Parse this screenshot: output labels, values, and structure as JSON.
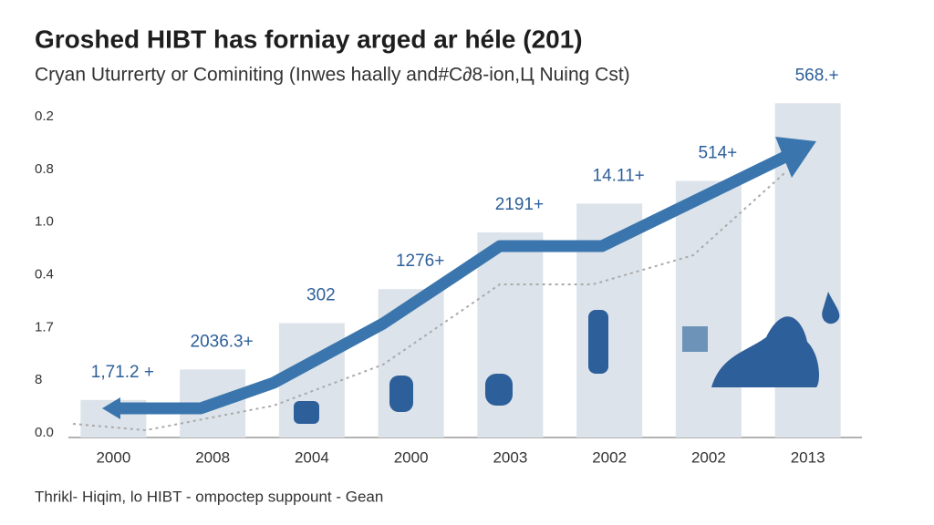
{
  "chart_data": {
    "type": "bar",
    "title": "Groshed HIBT has forniay arged ar héle (201)",
    "subtitle": "Cryan Uturrerty or Cominiting (Inwes haally and#C∂8-ion,Ц Nuing Cst)",
    "footer": "Thrikl- Hiqim, lo HIBT - ompoctep suppount - Gean",
    "categories": [
      "2000",
      "2008",
      "2004",
      "2000",
      "2003",
      "2002",
      "2002",
      "2013"
    ],
    "values": [
      43,
      78,
      131,
      170,
      235,
      268,
      294,
      383
    ],
    "annotations": [
      "1,71.2 +",
      "2036.3+",
      "302",
      "1276+",
      "2191+",
      "14.11+",
      "514+",
      "568.+"
    ],
    "y_labels": [
      "0.2",
      "0.8",
      "1.0",
      "0.4",
      "1.7",
      "8",
      "0.0"
    ],
    "ylim": [
      0,
      400
    ],
    "color": "#dde3ea"
  }
}
